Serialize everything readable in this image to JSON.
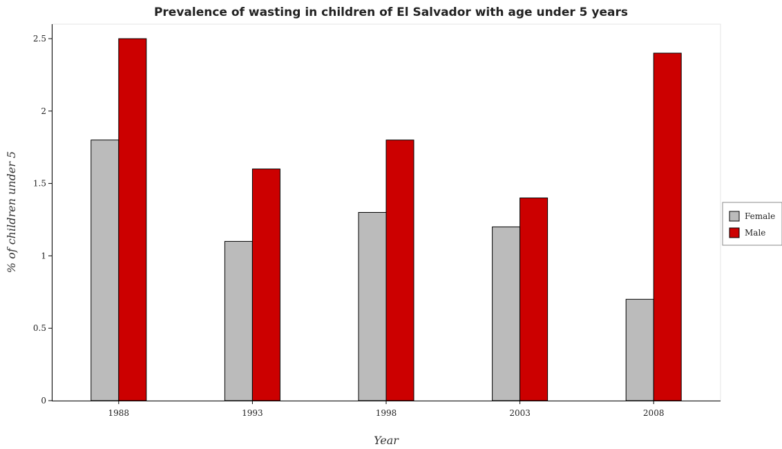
{
  "chart_data": {
    "type": "bar",
    "title": "Prevalence of wasting in children of El Salvador with age under 5 years",
    "xlabel": "Year",
    "ylabel": "% of children under 5",
    "categories": [
      "1988",
      "1993",
      "1998",
      "2003",
      "2008"
    ],
    "series": [
      {
        "name": "Female",
        "values": [
          1.8,
          1.1,
          1.3,
          1.2,
          0.7
        ],
        "color": "#bbbbbb"
      },
      {
        "name": "Male",
        "values": [
          2.5,
          1.6,
          1.8,
          1.4,
          2.4
        ],
        "color": "#cc0000"
      }
    ],
    "ylim": [
      0,
      2.6
    ],
    "yticks": [
      "0",
      "0.5",
      "1",
      "1.5",
      "2",
      "2.5"
    ],
    "ytick_values": [
      0,
      0.5,
      1,
      1.5,
      2,
      2.5
    ],
    "grid": false,
    "legend_position": "right"
  }
}
